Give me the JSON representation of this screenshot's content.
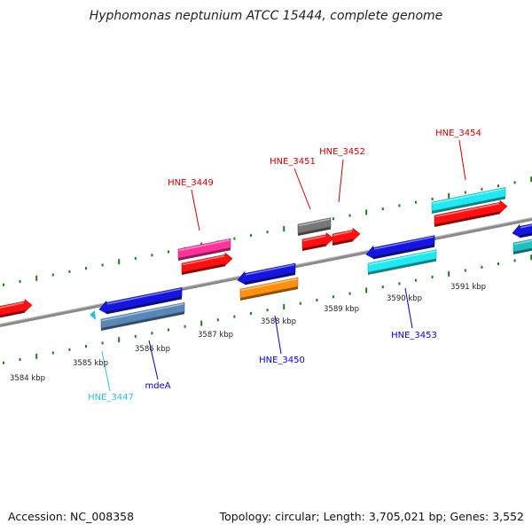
{
  "title": "Hyphomonas neptunium ATCC 15444, complete genome",
  "footer": {
    "accession": "Accession: NC_008358",
    "summary": "Topology: circular; Length: 3,705,021 bp; Genes: 3,552"
  },
  "colors": {
    "backbone": "#8a8a8a",
    "tick_dots": "#1e7a1e",
    "label_forward": "#cc0000",
    "label_reverse": "#0000cc",
    "label_cyan": "#33bbdd"
  },
  "tick_labels": [
    {
      "text": "3584 kbp",
      "strand": "reverse"
    },
    {
      "text": "3585 kbp",
      "strand": "reverse"
    },
    {
      "text": "3586 kbp",
      "strand": "reverse"
    },
    {
      "text": "3587 kbp",
      "strand": "reverse"
    },
    {
      "text": "3588 kbp",
      "strand": "reverse"
    },
    {
      "text": "3589 kbp",
      "strand": "reverse"
    },
    {
      "text": "3590 kbp",
      "strand": "reverse"
    },
    {
      "text": "3591 kbp",
      "strand": "reverse"
    }
  ],
  "forward_genes": [
    {
      "color": "#ff1111",
      "row": "inner",
      "direction": "right"
    },
    {
      "color": "#ff3399",
      "row": "outer",
      "direction": "none"
    },
    {
      "color": "#ff1111",
      "row": "inner",
      "direction": "right"
    },
    {
      "color": "#777777",
      "row": "outer",
      "direction": "none"
    },
    {
      "color": "#ff1111",
      "row": "inner",
      "direction": "right"
    },
    {
      "color": "#ff1111",
      "row": "inner",
      "direction": "right"
    },
    {
      "color": "#22e8f0",
      "row": "outer",
      "direction": "none"
    },
    {
      "color": "#ff1111",
      "row": "inner",
      "direction": "right"
    }
  ],
  "reverse_genes": [
    {
      "color": "#1515dd",
      "row": "inner",
      "direction": "left"
    },
    {
      "color": "#5a87b5",
      "row": "outer",
      "direction": "none"
    },
    {
      "color": "#1515dd",
      "row": "inner",
      "direction": "left"
    },
    {
      "color": "#ff9010",
      "row": "outer",
      "direction": "none"
    },
    {
      "color": "#1515dd",
      "row": "inner",
      "direction": "left"
    },
    {
      "color": "#22e8f0",
      "row": "outer",
      "direction": "none"
    },
    {
      "color": "#1515dd",
      "row": "inner",
      "direction": "left"
    },
    {
      "color": "#20c0c0",
      "row": "outer",
      "direction": "none"
    }
  ],
  "gene_labels": [
    {
      "text": "HNE_3449",
      "strand": "forward"
    },
    {
      "text": "HNE_3451",
      "strand": "forward"
    },
    {
      "text": "HNE_3452",
      "strand": "forward"
    },
    {
      "text": "HNE_3454",
      "strand": "forward"
    },
    {
      "text": "HNE_3447",
      "strand": "reverse"
    },
    {
      "text": "mdeA",
      "strand": "reverse"
    },
    {
      "text": "HNE_3450",
      "strand": "reverse"
    },
    {
      "text": "HNE_3453",
      "strand": "reverse"
    }
  ]
}
